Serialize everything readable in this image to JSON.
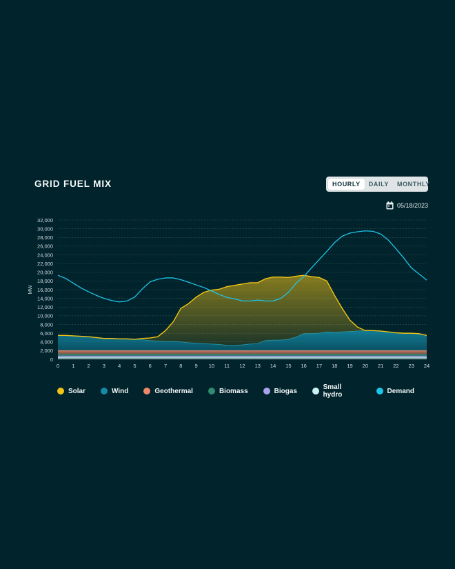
{
  "header": {
    "title": "GRID FUEL MIX",
    "range_options": [
      "HOURLY",
      "DAILY",
      "MONTHLY"
    ],
    "active_range": "HOURLY",
    "date": "05/18/2023",
    "date_icon": "calendar-icon"
  },
  "colors": {
    "background": "#01232b",
    "Solar": "#f2c415",
    "Wind": "#148aa6",
    "Geothermal": "#f0876a",
    "Biomass": "#2f8c72",
    "Biogas": "#a9a2ec",
    "Small hydro": "#c8f3f2",
    "Demand": "#1fc4e8"
  },
  "chart_data": {
    "type": "area",
    "xlabel": "",
    "ylabel": "MW",
    "xlim": [
      0,
      24
    ],
    "ylim": [
      0,
      32000
    ],
    "x_ticks": [
      0,
      1,
      2,
      3,
      4,
      5,
      6,
      7,
      8,
      9,
      10,
      11,
      12,
      13,
      14,
      15,
      16,
      17,
      18,
      19,
      20,
      21,
      22,
      23,
      24
    ],
    "y_ticks": [
      "0",
      "2,000",
      "4,000",
      "6,000",
      "8,000",
      "10,000",
      "12,000",
      "14,000",
      "16,000",
      "18,000",
      "20,000",
      "22,000",
      "24,000",
      "26,000",
      "28,000",
      "30,000",
      "32,000"
    ],
    "grid": true,
    "legend_position": "bottom",
    "x": [
      0,
      0.5,
      1,
      1.5,
      2,
      2.5,
      3,
      3.5,
      4,
      4.5,
      5,
      5.5,
      6,
      6.5,
      7,
      7.5,
      8,
      8.5,
      9,
      9.5,
      10,
      10.5,
      11,
      11.5,
      12,
      12.5,
      13,
      13.5,
      14,
      14.5,
      15,
      15.5,
      16,
      16.5,
      17,
      17.5,
      18,
      18.5,
      19,
      19.5,
      20,
      20.5,
      21,
      21.5,
      22,
      22.5,
      23,
      23.5,
      24
    ],
    "series": [
      {
        "name": "Small hydro",
        "kind": "area",
        "values": [
          500,
          500,
          500,
          500,
          500,
          500,
          500,
          500,
          500,
          500,
          500,
          500,
          500,
          500,
          500,
          500,
          500,
          500,
          500,
          500,
          500,
          500,
          500,
          500,
          500,
          500,
          500,
          500,
          500,
          500,
          500,
          500,
          500,
          500,
          500,
          500,
          500,
          500,
          500,
          500,
          500,
          500,
          500,
          500,
          500,
          500,
          500,
          500,
          500
        ]
      },
      {
        "name": "Biogas",
        "kind": "area",
        "values": [
          300,
          300,
          300,
          300,
          300,
          300,
          300,
          300,
          300,
          300,
          300,
          300,
          300,
          300,
          300,
          300,
          300,
          300,
          300,
          300,
          300,
          300,
          300,
          300,
          300,
          300,
          300,
          300,
          300,
          300,
          300,
          300,
          300,
          300,
          300,
          300,
          300,
          300,
          300,
          300,
          300,
          300,
          300,
          300,
          300,
          300,
          300,
          300,
          300
        ]
      },
      {
        "name": "Biomass",
        "kind": "area",
        "values": [
          400,
          400,
          400,
          400,
          400,
          400,
          400,
          400,
          400,
          400,
          400,
          400,
          400,
          400,
          400,
          400,
          400,
          400,
          400,
          400,
          400,
          400,
          400,
          400,
          400,
          400,
          400,
          400,
          400,
          400,
          400,
          400,
          400,
          400,
          400,
          400,
          400,
          400,
          400,
          400,
          400,
          400,
          400,
          400,
          400,
          400,
          400,
          400,
          400
        ]
      },
      {
        "name": "Geothermal",
        "kind": "area",
        "values": [
          800,
          800,
          800,
          800,
          800,
          800,
          800,
          800,
          800,
          800,
          800,
          800,
          800,
          800,
          800,
          800,
          800,
          800,
          800,
          800,
          800,
          800,
          800,
          800,
          800,
          800,
          800,
          800,
          800,
          800,
          800,
          800,
          800,
          800,
          800,
          800,
          800,
          800,
          800,
          800,
          800,
          800,
          800,
          800,
          800,
          800,
          800,
          800,
          800
        ]
      },
      {
        "name": "Wind",
        "kind": "area",
        "values": [
          3500,
          3500,
          3400,
          3300,
          3200,
          3000,
          2800,
          2800,
          2700,
          2700,
          2600,
          2500,
          2300,
          2200,
          2100,
          2100,
          2000,
          1800,
          1700,
          1600,
          1500,
          1400,
          1200,
          1200,
          1300,
          1500,
          1600,
          2300,
          2400,
          2400,
          2600,
          3100,
          3900,
          3900,
          4000,
          4300,
          4200,
          4300,
          4400,
          4500,
          4600,
          4600,
          4500,
          4300,
          4100,
          4000,
          4000,
          3900,
          3500
        ]
      },
      {
        "name": "Solar",
        "kind": "area",
        "values": [
          0,
          0,
          0,
          0,
          0,
          0,
          0,
          0,
          0,
          0,
          0,
          300,
          600,
          1000,
          2500,
          4500,
          7700,
          9000,
          10600,
          11800,
          12400,
          12700,
          13500,
          13800,
          14000,
          14100,
          14000,
          14200,
          14500,
          14500,
          14200,
          14000,
          13400,
          13100,
          12800,
          11700,
          8500,
          5400,
          2600,
          900,
          0,
          0,
          0,
          0,
          0,
          0,
          0,
          0,
          0
        ]
      },
      {
        "name": "Demand",
        "kind": "line",
        "values": [
          19300,
          18600,
          17500,
          16400,
          15500,
          14700,
          14000,
          13500,
          13200,
          13400,
          14300,
          16200,
          17800,
          18400,
          18700,
          18700,
          18300,
          17700,
          17100,
          16500,
          15700,
          14900,
          14200,
          13900,
          13400,
          13400,
          13600,
          13400,
          13400,
          14000,
          15400,
          17500,
          19000,
          21000,
          22900,
          24800,
          26800,
          28300,
          29000,
          29300,
          29500,
          29400,
          28800,
          27400,
          25400,
          23300,
          21000,
          19600,
          18200
        ]
      }
    ]
  },
  "legend": [
    {
      "label": "Solar",
      "color": "#f2c415"
    },
    {
      "label": "Wind",
      "color": "#148aa6"
    },
    {
      "label": "Geothermal",
      "color": "#f0876a"
    },
    {
      "label": "Biomass",
      "color": "#2f8c72"
    },
    {
      "label": "Biogas",
      "color": "#a9a2ec"
    },
    {
      "label": "Small hydro",
      "color": "#c8f3f2"
    },
    {
      "label": "Demand",
      "color": "#1fc4e8"
    }
  ]
}
